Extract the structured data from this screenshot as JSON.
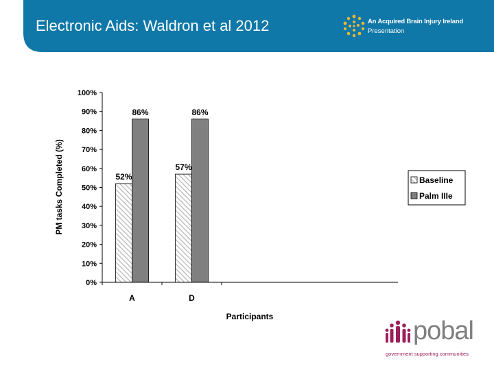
{
  "slide": {
    "title": "Electronic Aids: Waldron et al 2012",
    "header_color": "#0f78a8"
  },
  "logo_abi": {
    "line1": "An Acquired Brain Injury Ireland",
    "line2": "Presentation",
    "icon": "abi-dots-logo-icon"
  },
  "logo_pobal": {
    "word": "pobal",
    "tagline": "government supporting communities",
    "icon": "pobal-people-logo-icon",
    "accent": "#9c1f5c"
  },
  "chart_data": {
    "type": "bar",
    "categories": [
      "A",
      "D"
    ],
    "series": [
      {
        "name": "Baseline",
        "values": [
          52,
          57
        ],
        "labels": [
          "52%",
          "57%"
        ],
        "pattern": "diagonal-hatch"
      },
      {
        "name": "Palm IIIe",
        "values": [
          86,
          86
        ],
        "labels": [
          "86%",
          "86%"
        ],
        "color": "#808080"
      }
    ],
    "xlabel": "Participants",
    "ylabel": "PM tasks Completed (%)",
    "ylim": [
      0,
      100
    ],
    "yticks": [
      "0%",
      "10%",
      "20%",
      "30%",
      "40%",
      "50%",
      "60%",
      "70%",
      "80%",
      "90%",
      "100%"
    ],
    "grid": false,
    "legend": "right"
  }
}
